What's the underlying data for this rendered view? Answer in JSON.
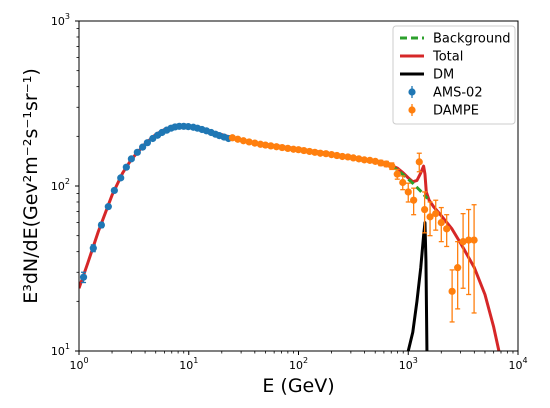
{
  "chart_data": {
    "type": "scatter",
    "xlabel": "E (GeV)",
    "ylabel": "E³dN/dE(Gev²m⁻²s⁻¹sr⁻¹)",
    "x_scale": "log",
    "y_scale": "log",
    "xlim": [
      1,
      10000
    ],
    "ylim": [
      10,
      1000
    ],
    "x_ticks": [
      {
        "value": 1,
        "base": "10",
        "exp": "0"
      },
      {
        "value": 10,
        "base": "10",
        "exp": "1"
      },
      {
        "value": 100,
        "base": "10",
        "exp": "2"
      },
      {
        "value": 1000,
        "base": "10",
        "exp": "3"
      },
      {
        "value": 10000,
        "base": "10",
        "exp": "4"
      }
    ],
    "y_ticks": [
      {
        "value": 10,
        "base": "10",
        "exp": "1"
      },
      {
        "value": 100,
        "base": "10",
        "exp": "2"
      },
      {
        "value": 1000,
        "base": "10",
        "exp": "3"
      }
    ],
    "grid": false,
    "legend_position": "top-right",
    "legend": [
      {
        "label": "Background",
        "color": "#2ca02c",
        "style": "dashed-line"
      },
      {
        "label": "Total",
        "color": "#d62728",
        "style": "line"
      },
      {
        "label": "DM",
        "color": "#000000",
        "style": "line"
      },
      {
        "label": "AMS-02",
        "color": "#1f77b4",
        "style": "errorbar-marker"
      },
      {
        "label": "DAMPE",
        "color": "#ff7f0e",
        "style": "errorbar-marker"
      }
    ],
    "series": [
      {
        "name": "AMS-02",
        "kind": "points",
        "color": "#1f77b4",
        "x": [
          1.1,
          1.35,
          1.6,
          1.85,
          2.1,
          2.4,
          2.7,
          3.0,
          3.4,
          3.8,
          4.2,
          4.7,
          5.2,
          5.7,
          6.3,
          6.9,
          7.5,
          8.2,
          9.0,
          9.9,
          11,
          12,
          13.2,
          14.5,
          16,
          17.5,
          19,
          21,
          23
        ],
        "y": [
          28,
          42,
          58,
          75,
          94,
          112,
          130,
          146,
          160,
          172,
          183,
          194,
          203,
          211,
          218,
          224,
          228,
          230,
          230,
          229,
          227,
          224,
          220,
          216,
          211,
          206,
          202,
          198,
          194
        ],
        "yerr": [
          2,
          2,
          2,
          2,
          2,
          2,
          2,
          2,
          2,
          2,
          2,
          2,
          2,
          2,
          2,
          2,
          2,
          2,
          2,
          2,
          2,
          2,
          2,
          2,
          2,
          2,
          2,
          2,
          2
        ]
      },
      {
        "name": "DAMPE",
        "kind": "points",
        "color": "#ff7f0e",
        "x": [
          25,
          28,
          31.5,
          35.5,
          40,
          45,
          50,
          56,
          63,
          71,
          80,
          90,
          100,
          112,
          126,
          141,
          158,
          178,
          200,
          224,
          251,
          282,
          316,
          355,
          398,
          447,
          501,
          562,
          631,
          708,
          794,
          891,
          1000,
          1120,
          1260,
          1410,
          1580,
          1780,
          2000,
          2240,
          2510,
          2820,
          3160,
          3550,
          3980
        ],
        "y": [
          196,
          192,
          188,
          185,
          182,
          179,
          177,
          175,
          173,
          171,
          169,
          167,
          166,
          164,
          162,
          160,
          158,
          157,
          155,
          153,
          151,
          150,
          148,
          146,
          144,
          143,
          141,
          138,
          136,
          132,
          118,
          105,
          92,
          82,
          140,
          72,
          65,
          68,
          60,
          55,
          23,
          32,
          46,
          47,
          47
        ],
        "yerr": [
          2,
          2,
          2,
          2,
          2,
          2,
          2,
          2,
          2,
          2,
          2,
          2,
          2,
          2,
          2,
          2,
          2,
          2,
          2,
          2,
          2,
          2,
          3,
          3,
          3,
          4,
          4,
          5,
          5,
          6,
          8,
          10,
          12,
          15,
          18,
          20,
          15,
          14,
          14,
          12,
          8,
          14,
          22,
          25,
          30
        ]
      },
      {
        "name": "Total",
        "kind": "line",
        "color": "#d62728",
        "x": [
          1,
          1.2,
          1.5,
          2,
          2.5,
          3,
          4,
          5,
          6,
          7,
          8,
          10,
          12,
          15,
          20,
          25,
          30,
          40,
          60,
          100,
          200,
          300,
          500,
          700,
          800,
          900,
          1000,
          1100,
          1200,
          1300,
          1380,
          1420,
          1460,
          1550,
          1700,
          2000,
          2500,
          3000,
          4000,
          5000,
          6000,
          6700
        ],
        "y": [
          24,
          34,
          53,
          88,
          120,
          145,
          180,
          205,
          220,
          228,
          231,
          230,
          225,
          216,
          205,
          196,
          190,
          182,
          176,
          168,
          157,
          150,
          142,
          133,
          128,
          120,
          112,
          106,
          108,
          120,
          132,
          118,
          92,
          82,
          75,
          66,
          55,
          45,
          32,
          22,
          14,
          10
        ]
      },
      {
        "name": "Background",
        "kind": "line",
        "color": "#2ca02c",
        "x": [
          700,
          800,
          900,
          1000,
          1100,
          1200,
          1300,
          1400,
          1500
        ],
        "y": [
          133,
          125,
          117,
          110,
          104,
          98,
          93,
          88,
          84
        ]
      },
      {
        "name": "DM",
        "kind": "line",
        "color": "#000000",
        "x": [
          1000,
          1100,
          1200,
          1300,
          1380,
          1420,
          1450,
          1480
        ],
        "y": [
          10,
          13,
          20,
          32,
          50,
          60,
          35,
          10
        ]
      }
    ]
  }
}
